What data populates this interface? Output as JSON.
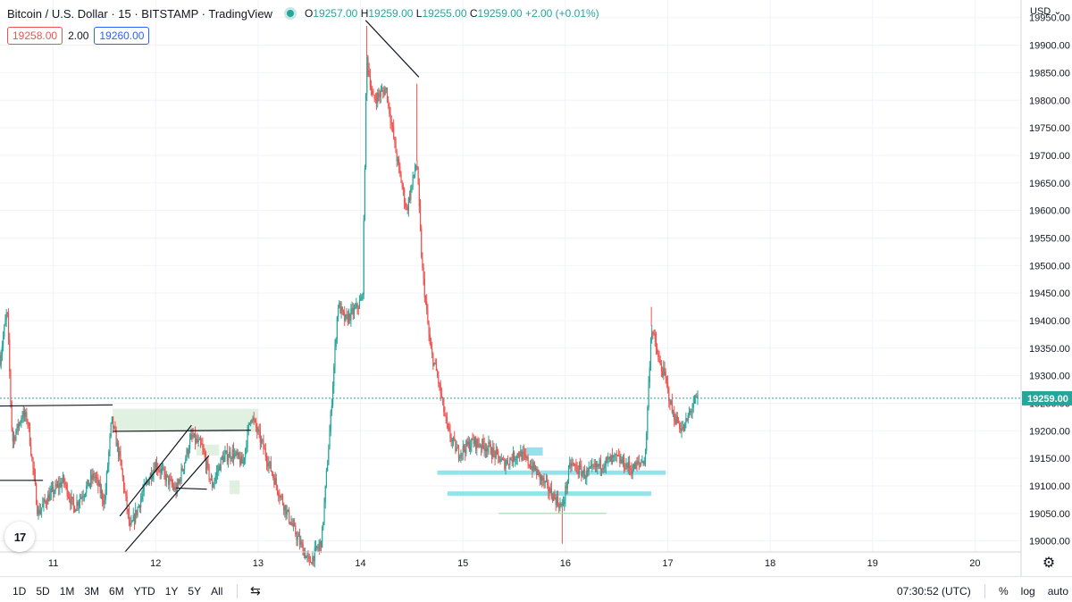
{
  "header": {
    "symbol": "Bitcoin / U.S. Dollar · 15 · BITSTAMP · TradingView",
    "open_label": "O",
    "open": "19257.00",
    "high_label": "H",
    "high": "19259.00",
    "low_label": "L",
    "low": "19255.00",
    "close_label": "C",
    "close": "19259.00",
    "change": "+2.00 (+0.01%)"
  },
  "trade": {
    "sell": "19258.00",
    "spread": "2.00",
    "buy": "19260.00"
  },
  "currency": "USD",
  "logo": "17",
  "bottom": {
    "ranges": [
      "1D",
      "5D",
      "1M",
      "3M",
      "6M",
      "YTD",
      "1Y",
      "5Y",
      "All"
    ],
    "clock": "07:30:52 (UTC)",
    "percent": "%",
    "log": "log",
    "auto": "auto"
  },
  "colors": {
    "up": "#26a69a",
    "down": "#ef5350",
    "last_price": "#26a69a",
    "zone_green": "#c8e6c9",
    "zone_blue": "#80deea",
    "text": "#131722"
  },
  "icons": {
    "settings": "gear-icon",
    "compare": "compare-icon",
    "chevron": "chevron-down-icon"
  },
  "chart_data": {
    "type": "candlestick",
    "x_ticks": [
      "11",
      "12",
      "13",
      "14",
      "15",
      "16",
      "17",
      "18",
      "19",
      "20"
    ],
    "x_tick_values": [
      11,
      12,
      13,
      14,
      15,
      16,
      17,
      18,
      19,
      20
    ],
    "xlim": [
      10.48,
      20.45
    ],
    "ylim": [
      18980,
      19982
    ],
    "y_ticks": [
      19000,
      19050,
      19100,
      19150,
      19200,
      19250,
      19300,
      19350,
      19400,
      19450,
      19500,
      19550,
      19600,
      19650,
      19700,
      19750,
      19800,
      19850,
      19900,
      19950
    ],
    "y_tick_labels": [
      "19000.00",
      "19050.00",
      "19100.00",
      "19150.00",
      "19200.00",
      "19250.00",
      "19300.00",
      "19350.00",
      "19400.00",
      "19450.00",
      "19500.00",
      "19550.00",
      "19600.00",
      "19650.00",
      "19700.00",
      "19750.00",
      "19800.00",
      "19850.00",
      "19900.00",
      "19950.00"
    ],
    "last_price": 19259,
    "last_price_label": "19259.00",
    "price_path": [
      [
        10.48,
        19330
      ],
      [
        10.55,
        19420
      ],
      [
        10.6,
        19180
      ],
      [
        10.7,
        19230
      ],
      [
        10.75,
        19220
      ],
      [
        10.85,
        19050
      ],
      [
        10.95,
        19080
      ],
      [
        11.1,
        19110
      ],
      [
        11.2,
        19060
      ],
      [
        11.4,
        19120
      ],
      [
        11.5,
        19070
      ],
      [
        11.57,
        19220
      ],
      [
        11.65,
        19150
      ],
      [
        11.75,
        19020
      ],
      [
        11.9,
        19100
      ],
      [
        12.0,
        19140
      ],
      [
        12.2,
        19090
      ],
      [
        12.35,
        19190
      ],
      [
        12.45,
        19170
      ],
      [
        12.55,
        19100
      ],
      [
        12.65,
        19150
      ],
      [
        12.75,
        19160
      ],
      [
        12.85,
        19140
      ],
      [
        12.93,
        19230
      ],
      [
        13.05,
        19170
      ],
      [
        13.2,
        19090
      ],
      [
        13.35,
        19020
      ],
      [
        13.5,
        18960
      ],
      [
        13.62,
        19000
      ],
      [
        13.7,
        19200
      ],
      [
        13.78,
        19430
      ],
      [
        13.85,
        19400
      ],
      [
        13.95,
        19420
      ],
      [
        14.02,
        19440
      ],
      [
        14.06,
        19880
      ],
      [
        14.12,
        19800
      ],
      [
        14.25,
        19820
      ],
      [
        14.35,
        19700
      ],
      [
        14.45,
        19600
      ],
      [
        14.55,
        19690
      ],
      [
        14.6,
        19500
      ],
      [
        14.68,
        19350
      ],
      [
        14.75,
        19300
      ],
      [
        14.85,
        19200
      ],
      [
        14.95,
        19160
      ],
      [
        15.1,
        19180
      ],
      [
        15.25,
        19170
      ],
      [
        15.4,
        19140
      ],
      [
        15.55,
        19160
      ],
      [
        15.7,
        19130
      ],
      [
        15.85,
        19090
      ],
      [
        15.97,
        19060
      ],
      [
        16.05,
        19140
      ],
      [
        16.2,
        19120
      ],
      [
        16.35,
        19140
      ],
      [
        16.5,
        19150
      ],
      [
        16.65,
        19130
      ],
      [
        16.78,
        19150
      ],
      [
        16.84,
        19390
      ],
      [
        16.92,
        19320
      ],
      [
        16.97,
        19300
      ],
      [
        17.05,
        19230
      ],
      [
        17.15,
        19200
      ],
      [
        17.25,
        19250
      ],
      [
        17.3,
        19259
      ]
    ],
    "spikes": [
      [
        14.06,
        19935
      ],
      [
        14.55,
        19830
      ],
      [
        16.84,
        19425
      ],
      [
        15.97,
        18995
      ],
      [
        13.6,
        18975
      ]
    ],
    "drawings": [
      {
        "kind": "trendline",
        "from": [
          14.05,
          19945
        ],
        "to": [
          14.57,
          19842
        ]
      },
      {
        "kind": "trendline",
        "from": [
          11.7,
          18980
        ],
        "to": [
          12.52,
          19155
        ]
      },
      {
        "kind": "trendline",
        "from": [
          11.65,
          19045
        ],
        "to": [
          12.35,
          19210
        ]
      },
      {
        "kind": "hline",
        "from": [
          10.48,
          19245
        ],
        "to": [
          11.58,
          19247
        ]
      },
      {
        "kind": "hline",
        "from": [
          11.58,
          19199
        ],
        "to": [
          12.93,
          19201
        ]
      },
      {
        "kind": "hline",
        "from": [
          10.48,
          19110
        ],
        "to": [
          10.9,
          19110
        ]
      },
      {
        "kind": "hline",
        "from": [
          12.2,
          19096
        ],
        "to": [
          12.5,
          19094
        ]
      },
      {
        "kind": "hline",
        "from": [
          15.35,
          19050
        ],
        "to": [
          16.4,
          19050
        ]
      }
    ],
    "zones": [
      {
        "color": "green",
        "x": [
          11.58,
          12.98
        ],
        "y": [
          19198,
          19240
        ]
      },
      {
        "color": "green",
        "x": [
          12.98,
          13.0
        ],
        "y": [
          19198,
          19240
        ]
      },
      {
        "color": "green",
        "x": [
          12.4,
          12.62
        ],
        "y": [
          19155,
          19175
        ]
      },
      {
        "color": "green",
        "x": [
          12.72,
          12.82
        ],
        "y": [
          19085,
          19110
        ]
      },
      {
        "color": "blue",
        "x": [
          14.75,
          16.98
        ],
        "y": [
          19120,
          19128
        ]
      },
      {
        "color": "blue",
        "x": [
          14.85,
          16.84
        ],
        "y": [
          19082,
          19090
        ]
      },
      {
        "color": "blue",
        "x": [
          15.62,
          15.78
        ],
        "y": [
          19155,
          19170
        ]
      }
    ]
  }
}
